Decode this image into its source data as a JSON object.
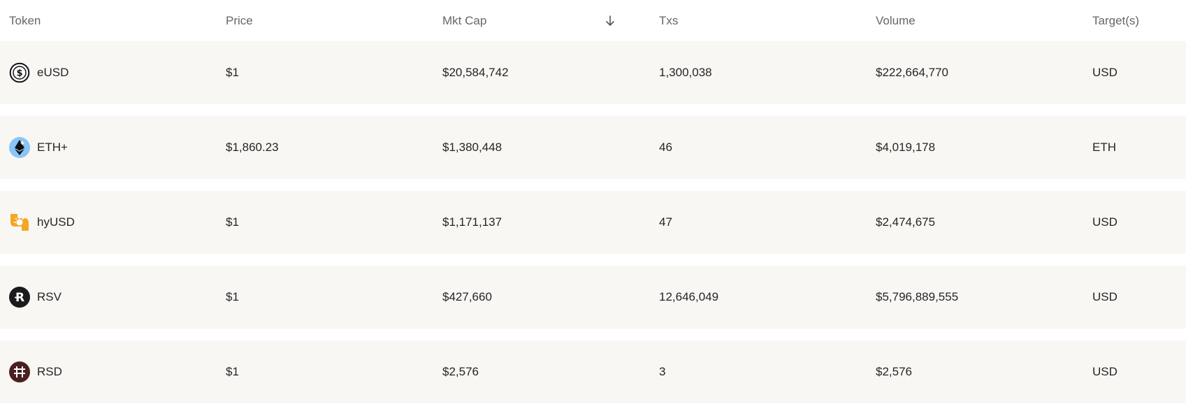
{
  "header": {
    "token": "Token",
    "price": "Price",
    "mkt_cap": "Mkt Cap",
    "txs": "Txs",
    "volume": "Volume",
    "targets": "Target(s)"
  },
  "sort_icon": "arrow-down-icon",
  "rows": [
    {
      "name": "eUSD",
      "icon": "eusd-dollar-icon",
      "price": "$1",
      "mkt_cap": "$20,584,742",
      "txs": "1,300,038",
      "volume": "$222,664,770",
      "target": "USD"
    },
    {
      "name": "ETH+",
      "icon": "ethereum-plus-icon",
      "price": "$1,860.23",
      "mkt_cap": "$1,380,448",
      "txs": "46",
      "volume": "$4,019,178",
      "target": "ETH"
    },
    {
      "name": "hyUSD",
      "icon": "hyusd-icon",
      "price": "$1",
      "mkt_cap": "$1,171,137",
      "txs": "47",
      "volume": "$2,474,675",
      "target": "USD"
    },
    {
      "name": "RSV",
      "icon": "rsv-icon",
      "price": "$1",
      "mkt_cap": "$427,660",
      "txs": "12,646,049",
      "volume": "$5,796,889,555",
      "target": "USD"
    },
    {
      "name": "RSD",
      "icon": "rsd-icon",
      "price": "$1",
      "mkt_cap": "$2,576",
      "txs": "3",
      "volume": "$2,576",
      "target": "USD"
    }
  ],
  "colors": {
    "row_background": "#f8f7f4",
    "header_text": "#666666",
    "body_text": "#252525",
    "eth_blue": "#8ac6f5",
    "hyusd_orange": "#f5a623",
    "rsd_maroon": "#4a1f1f"
  }
}
